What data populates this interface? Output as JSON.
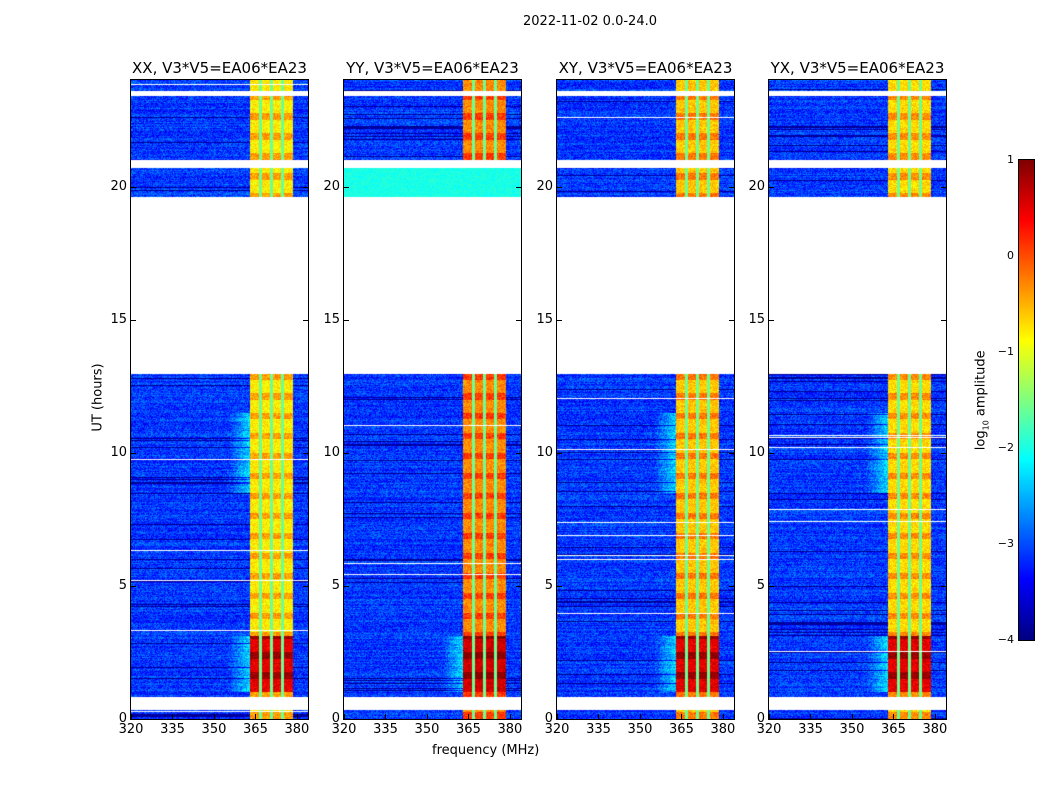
{
  "chart_data": {
    "type": "heatmap",
    "title": "2022-11-02 0.0-24.0",
    "panels": [
      {
        "title": "XX, V3*V5=EA06*EA23",
        "rfi_level": -0.8,
        "rfi_low_level": 0.5
      },
      {
        "title": "YY, V3*V5=EA06*EA23",
        "rfi_level": -0.3,
        "rfi_low_level": 0.6
      },
      {
        "title": "XY, V3*V5=EA06*EA23",
        "rfi_level": -0.6,
        "rfi_low_level": 0.5
      },
      {
        "title": "YX, V3*V5=EA06*EA23",
        "rfi_level": -0.7,
        "rfi_low_level": 0.5
      }
    ],
    "xlabel": "frequency (MHz)",
    "ylabel": "UT (hours)",
    "xlim": [
      320,
      384
    ],
    "ylim": [
      0,
      24
    ],
    "xticks": [
      "320",
      "335",
      "350",
      "365",
      "380"
    ],
    "xtick_values": [
      320,
      335,
      350,
      365,
      380
    ],
    "yticks": [
      "0",
      "5",
      "10",
      "15",
      "20"
    ],
    "ytick_values": [
      0,
      5,
      10,
      15,
      20
    ],
    "background_level": -3.1,
    "rfi_band_mhz": [
      363,
      378.5
    ],
    "rfi_gap_lines_mhz": [
      366.8,
      370.8,
      374.8
    ],
    "data_gaps_hours": [
      [
        0.34,
        0.83
      ],
      [
        12.95,
        19.6
      ],
      [
        20.7,
        21.0
      ],
      [
        23.4,
        23.6
      ]
    ],
    "colorbar": {
      "label": "log10 amplitude",
      "label_main": "log",
      "label_sub": "10",
      "label_rest": " amplitude",
      "range": [
        -4,
        1
      ],
      "ticks": [
        "−4",
        "−3",
        "−2",
        "−1",
        "0",
        "1"
      ],
      "tick_values": [
        -4,
        -3,
        -2,
        -1,
        0,
        1
      ],
      "colormap": "jet"
    }
  }
}
